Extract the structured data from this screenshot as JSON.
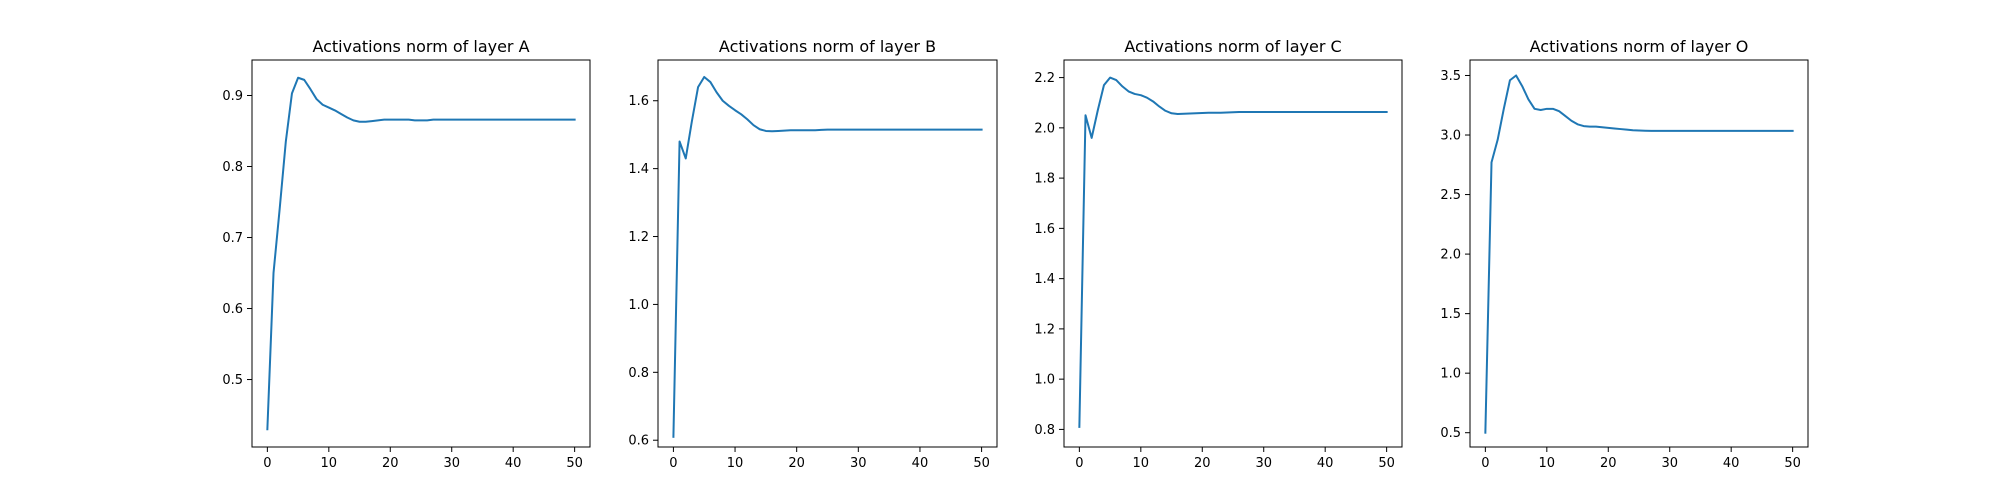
{
  "line_color": "#1f77b4",
  "chart_data": [
    {
      "type": "line",
      "title": "Activations norm of layer A",
      "xlabel": "",
      "ylabel": "",
      "xlim": [
        -2.5,
        52.5
      ],
      "ylim": [
        0.405,
        0.95
      ],
      "grid": false,
      "xticks": [
        0,
        10,
        20,
        30,
        40,
        50
      ],
      "yticks": [
        0.5,
        0.6,
        0.7,
        0.8,
        0.9
      ],
      "ytick_labels": [
        "0.5",
        "0.6",
        "0.7",
        "0.8",
        "0.9"
      ],
      "x": [
        0,
        1,
        2,
        3,
        4,
        5,
        6,
        7,
        8,
        9,
        10,
        11,
        12,
        13,
        14,
        15,
        16,
        17,
        18,
        19,
        20,
        21,
        22,
        23,
        24,
        25,
        26,
        27,
        28,
        29,
        30,
        31,
        32,
        33,
        34,
        35,
        36,
        37,
        38,
        39,
        40,
        41,
        42,
        43,
        44,
        45,
        46,
        47,
        48,
        49,
        50
      ],
      "series": [
        {
          "values": [
            0.43,
            0.65,
            0.74,
            0.835,
            0.903,
            0.925,
            0.922,
            0.909,
            0.895,
            0.887,
            0.883,
            0.879,
            0.874,
            0.869,
            0.865,
            0.863,
            0.863,
            0.864,
            0.865,
            0.866,
            0.866,
            0.866,
            0.866,
            0.866,
            0.865,
            0.865,
            0.865,
            0.866,
            0.866,
            0.866,
            0.866,
            0.866,
            0.866,
            0.866,
            0.866,
            0.866,
            0.866,
            0.866,
            0.866,
            0.866,
            0.866,
            0.866,
            0.866,
            0.866,
            0.866,
            0.866,
            0.866,
            0.866,
            0.866,
            0.866,
            0.866
          ]
        }
      ]
    },
    {
      "type": "line",
      "title": "Activations norm of layer B",
      "xlabel": "",
      "ylabel": "",
      "xlim": [
        -2.5,
        52.5
      ],
      "ylim": [
        0.58,
        1.72
      ],
      "grid": false,
      "xticks": [
        0,
        10,
        20,
        30,
        40,
        50
      ],
      "yticks": [
        0.6,
        0.8,
        1.0,
        1.2,
        1.4,
        1.6
      ],
      "ytick_labels": [
        "0.6",
        "0.8",
        "1.0",
        "1.2",
        "1.4",
        "1.6"
      ],
      "x": [
        0,
        1,
        2,
        3,
        4,
        5,
        6,
        7,
        8,
        9,
        10,
        11,
        12,
        13,
        14,
        15,
        16,
        17,
        18,
        19,
        20,
        21,
        22,
        23,
        24,
        25,
        26,
        27,
        28,
        29,
        30,
        31,
        32,
        33,
        34,
        35,
        36,
        37,
        38,
        39,
        40,
        41,
        42,
        43,
        44,
        45,
        46,
        47,
        48,
        49,
        50
      ],
      "series": [
        {
          "values": [
            0.61,
            1.48,
            1.43,
            1.54,
            1.64,
            1.67,
            1.655,
            1.625,
            1.6,
            1.585,
            1.572,
            1.56,
            1.545,
            1.528,
            1.516,
            1.511,
            1.51,
            1.511,
            1.512,
            1.513,
            1.513,
            1.513,
            1.513,
            1.513,
            1.514,
            1.515,
            1.515,
            1.515,
            1.515,
            1.515,
            1.515,
            1.515,
            1.515,
            1.515,
            1.515,
            1.515,
            1.515,
            1.515,
            1.515,
            1.515,
            1.515,
            1.515,
            1.515,
            1.515,
            1.515,
            1.515,
            1.515,
            1.515,
            1.515,
            1.515,
            1.515
          ]
        }
      ]
    },
    {
      "type": "line",
      "title": "Activations norm of layer C",
      "xlabel": "",
      "ylabel": "",
      "xlim": [
        -2.5,
        52.5
      ],
      "ylim": [
        0.73,
        2.27
      ],
      "grid": false,
      "xticks": [
        0,
        10,
        20,
        30,
        40,
        50
      ],
      "yticks": [
        0.8,
        1.0,
        1.2,
        1.4,
        1.6,
        1.8,
        2.0,
        2.2
      ],
      "ytick_labels": [
        "0.8",
        "1.0",
        "1.2",
        "1.4",
        "1.6",
        "1.8",
        "2.0",
        "2.2"
      ],
      "x": [
        0,
        1,
        2,
        3,
        4,
        5,
        6,
        7,
        8,
        9,
        10,
        11,
        12,
        13,
        14,
        15,
        16,
        17,
        18,
        19,
        20,
        21,
        22,
        23,
        24,
        25,
        26,
        27,
        28,
        29,
        30,
        31,
        32,
        33,
        34,
        35,
        36,
        37,
        38,
        39,
        40,
        41,
        42,
        43,
        44,
        45,
        46,
        47,
        48,
        49,
        50
      ],
      "series": [
        {
          "values": [
            0.81,
            2.05,
            1.96,
            2.07,
            2.17,
            2.2,
            2.19,
            2.165,
            2.145,
            2.135,
            2.13,
            2.12,
            2.105,
            2.085,
            2.068,
            2.058,
            2.055,
            2.056,
            2.057,
            2.058,
            2.059,
            2.06,
            2.06,
            2.06,
            2.061,
            2.062,
            2.063,
            2.063,
            2.063,
            2.063,
            2.063,
            2.063,
            2.063,
            2.063,
            2.063,
            2.063,
            2.063,
            2.063,
            2.063,
            2.063,
            2.063,
            2.063,
            2.063,
            2.063,
            2.063,
            2.063,
            2.063,
            2.063,
            2.063,
            2.063,
            2.063
          ]
        }
      ]
    },
    {
      "type": "line",
      "title": "Activations norm of layer O",
      "xlabel": "",
      "ylabel": "",
      "xlim": [
        -2.5,
        52.5
      ],
      "ylim": [
        0.38,
        3.63
      ],
      "grid": false,
      "xticks": [
        0,
        10,
        20,
        30,
        40,
        50
      ],
      "yticks": [
        0.5,
        1.0,
        1.5,
        2.0,
        2.5,
        3.0,
        3.5
      ],
      "ytick_labels": [
        "0.5",
        "1.0",
        "1.5",
        "2.0",
        "2.5",
        "3.0",
        "3.5"
      ],
      "x": [
        0,
        1,
        2,
        3,
        4,
        5,
        6,
        7,
        8,
        9,
        10,
        11,
        12,
        13,
        14,
        15,
        16,
        17,
        18,
        19,
        20,
        21,
        22,
        23,
        24,
        25,
        26,
        27,
        28,
        29,
        30,
        31,
        32,
        33,
        34,
        35,
        36,
        37,
        38,
        39,
        40,
        41,
        42,
        43,
        44,
        45,
        46,
        47,
        48,
        49,
        50
      ],
      "series": [
        {
          "values": [
            0.5,
            2.77,
            2.96,
            3.22,
            3.46,
            3.5,
            3.41,
            3.3,
            3.22,
            3.21,
            3.22,
            3.22,
            3.2,
            3.16,
            3.12,
            3.09,
            3.075,
            3.07,
            3.07,
            3.065,
            3.06,
            3.055,
            3.05,
            3.045,
            3.04,
            3.038,
            3.036,
            3.035,
            3.035,
            3.035,
            3.035,
            3.035,
            3.035,
            3.035,
            3.035,
            3.035,
            3.035,
            3.035,
            3.035,
            3.035,
            3.035,
            3.035,
            3.035,
            3.035,
            3.035,
            3.035,
            3.035,
            3.035,
            3.035,
            3.035,
            3.035
          ]
        }
      ]
    }
  ]
}
